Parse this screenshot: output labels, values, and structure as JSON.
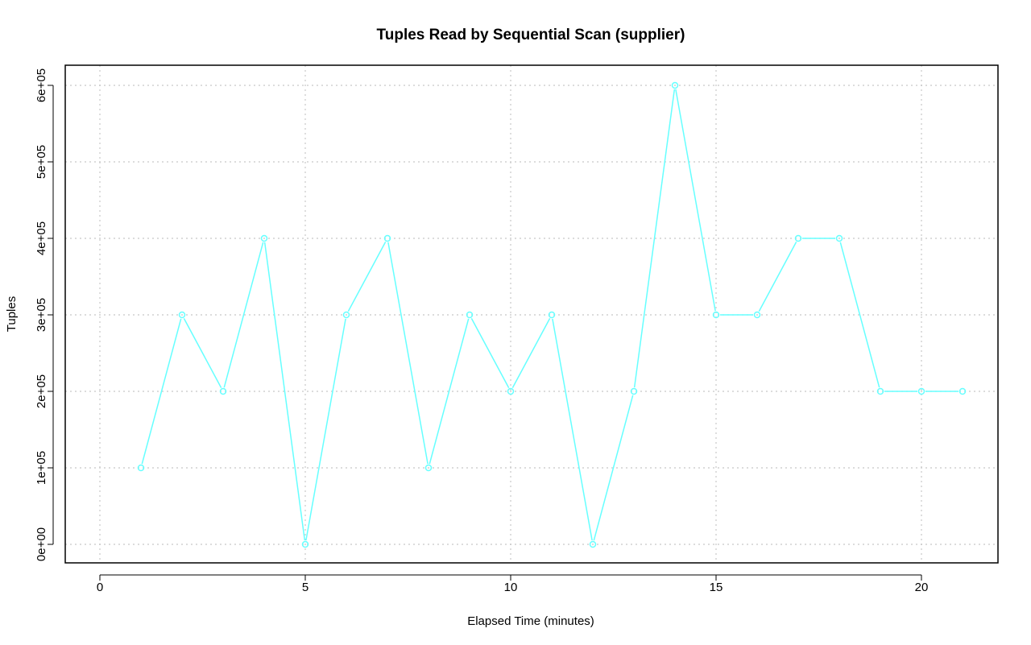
{
  "chart_data": {
    "type": "line",
    "title": "Tuples Read by Sequential Scan (supplier)",
    "xlabel": "Elapsed Time (minutes)",
    "ylabel": "Tuples",
    "xlim": [
      0,
      21
    ],
    "ylim": [
      0,
      600000
    ],
    "x_ticks": [
      0,
      5,
      10,
      15,
      20
    ],
    "x_tick_labels": [
      "0",
      "5",
      "10",
      "15",
      "20"
    ],
    "y_ticks": [
      0,
      100000,
      200000,
      300000,
      400000,
      500000,
      600000
    ],
    "y_tick_labels": [
      "0e+00",
      "1e+05",
      "2e+05",
      "3e+05",
      "4e+05",
      "5e+05",
      "6e+05"
    ],
    "grid": true,
    "series": [
      {
        "color": "#66ffff",
        "x": [
          1,
          2,
          3,
          4,
          5,
          6,
          7,
          8,
          9,
          10,
          11,
          12,
          13,
          14,
          15,
          16,
          17,
          18,
          19,
          20,
          21
        ],
        "values": [
          100000,
          300000,
          200000,
          400000,
          0,
          300000,
          400000,
          100000,
          300000,
          200000,
          300000,
          0,
          200000,
          600000,
          300000,
          300000,
          400000,
          400000,
          200000,
          200000,
          200000
        ]
      }
    ]
  }
}
